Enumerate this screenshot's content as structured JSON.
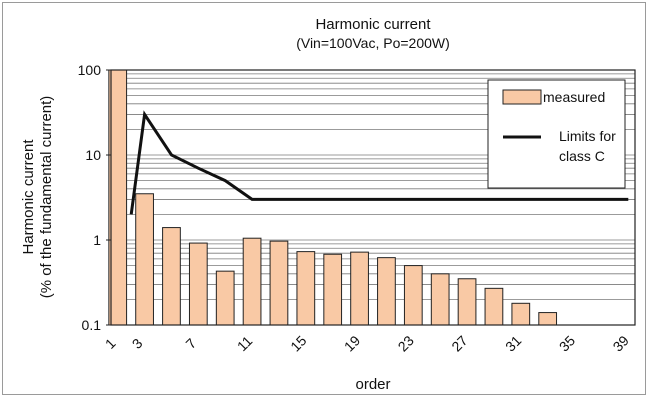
{
  "chart_data": {
    "type": "bar",
    "title": "Harmonic current",
    "subtitle": "(Vin=100Vac, Po=200W)",
    "xlabel": "order",
    "ylabel_line1": "Harmonic current",
    "ylabel_line2": "(% of the fundamental current)",
    "y_scale": "log",
    "ylim": [
      0.1,
      100
    ],
    "y_ticks": [
      "0.1",
      "1",
      "10",
      "100"
    ],
    "y_tick_values": [
      0.1,
      1,
      10,
      100
    ],
    "grid": "horizontal minor log gridlines",
    "legend_position": "top-right",
    "orders": [
      1,
      2,
      3,
      4,
      5,
      6,
      7,
      8,
      9,
      10,
      11,
      12,
      13,
      14,
      15,
      16,
      17,
      18,
      19,
      20,
      21,
      22,
      23,
      24,
      25,
      26,
      27,
      28,
      29,
      30,
      31,
      32,
      33,
      34,
      35,
      36,
      37,
      38,
      39
    ],
    "x_tick_labels": [
      "1",
      "3",
      "7",
      "11",
      "15",
      "19",
      "23",
      "27",
      "31",
      "35",
      "39"
    ],
    "x_tick_orders": [
      1,
      3,
      7,
      11,
      15,
      19,
      23,
      27,
      31,
      35,
      39
    ],
    "series": [
      {
        "name": "measured",
        "kind": "bar",
        "color": "#f9c9a5",
        "orders": [
          1,
          2,
          3,
          5,
          7,
          9,
          11,
          13,
          15,
          17,
          19,
          21,
          23,
          25,
          27,
          29,
          31,
          33,
          35,
          37,
          39
        ],
        "values": [
          100,
          0.1,
          3.5,
          1.4,
          0.92,
          0.43,
          1.05,
          0.97,
          0.73,
          0.68,
          0.72,
          0.62,
          0.5,
          0.4,
          0.35,
          0.27,
          0.18,
          0.14,
          0.1,
          0.1,
          0.1
        ]
      },
      {
        "name": "Limits for class C",
        "kind": "line",
        "color": "#111111",
        "orders": [
          2,
          3,
          5,
          7,
          9,
          11,
          13,
          15,
          17,
          19,
          21,
          23,
          25,
          27,
          29,
          31,
          33,
          35,
          37,
          39
        ],
        "values": [
          2,
          30,
          10,
          7,
          5,
          3,
          3,
          3,
          3,
          3,
          3,
          3,
          3,
          3,
          3,
          3,
          3,
          3,
          3,
          3
        ]
      }
    ],
    "legend": {
      "measured_label": "measured",
      "limits_label_line1": "Limits for",
      "limits_label_line2": "class C"
    }
  }
}
